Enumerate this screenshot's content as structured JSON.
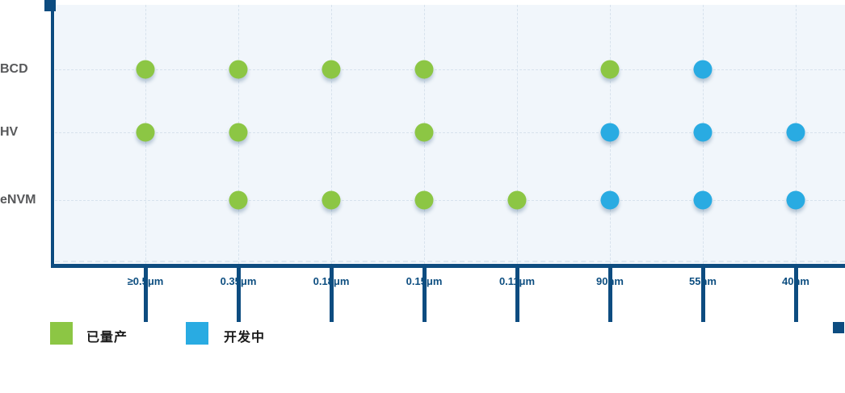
{
  "chart_data": {
    "type": "scatter",
    "title": "",
    "x_categories": [
      "≥0.5μm",
      "0.35μm",
      "0.18μm",
      "0.15μm",
      "0.11μm",
      "90nm",
      "55nm",
      "40nm"
    ],
    "y_categories": [
      "BCD",
      "HV",
      "eNVM"
    ],
    "matrix": [
      [
        "prod",
        "prod",
        "prod",
        "prod",
        null,
        "prod",
        "dev",
        null
      ],
      [
        "prod",
        "prod",
        null,
        "prod",
        null,
        "dev",
        "dev",
        "dev"
      ],
      [
        null,
        "prod",
        "prod",
        "prod",
        "prod",
        "dev",
        "dev",
        "dev"
      ]
    ],
    "status_labels": {
      "prod": "已量产",
      "dev": "开发中"
    },
    "legend": [
      {
        "key": "prod",
        "label": "已量产",
        "color": "#8CC644"
      },
      {
        "key": "dev",
        "label": "开发中",
        "color": "#29ABE2"
      }
    ],
    "legend_position": "bottom-left",
    "grid": true,
    "colors": {
      "prod": "#8CC644",
      "dev": "#29ABE2",
      "axis": "#0D4C80",
      "plot_background": "#F1F6FB",
      "gridline": "#D7E2ED",
      "x_label": "#0D4E80",
      "y_label": "#58595B",
      "legend_text": "#1A1A1A"
    }
  }
}
